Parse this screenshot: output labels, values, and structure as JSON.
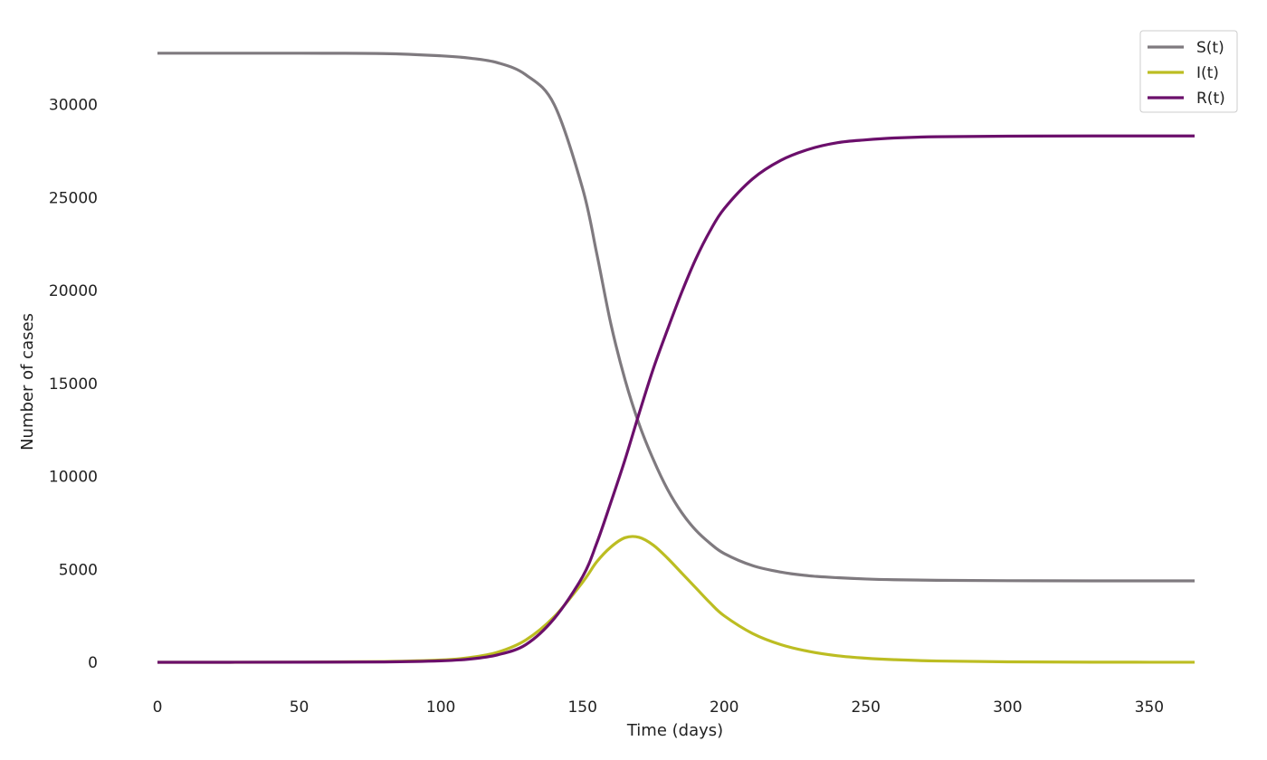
{
  "chart_data": {
    "type": "line",
    "title": "",
    "xlabel": "Time (days)",
    "ylabel": "Number of cases",
    "xlim": [
      0,
      366
    ],
    "ylim": [
      0,
      32800
    ],
    "xticks": [
      0,
      50,
      100,
      150,
      200,
      250,
      300,
      350
    ],
    "yticks": [
      0,
      5000,
      10000,
      15000,
      20000,
      25000,
      30000
    ],
    "grid": false,
    "legend_position": "top-right",
    "x": [
      0,
      50,
      80,
      100,
      110,
      120,
      130,
      140,
      150,
      155,
      160,
      165,
      170,
      175,
      180,
      185,
      190,
      195,
      200,
      210,
      220,
      230,
      240,
      250,
      260,
      275,
      300,
      330,
      366
    ],
    "series": [
      {
        "name": "S(t)",
        "color": "#7f7a7f",
        "values": [
          32760,
          32760,
          32740,
          32620,
          32500,
          32250,
          31600,
          30000,
          25500,
          22000,
          18200,
          15200,
          12800,
          10900,
          9300,
          8050,
          7100,
          6400,
          5850,
          5200,
          4850,
          4650,
          4550,
          4480,
          4440,
          4410,
          4390,
          4380,
          4380
        ]
      },
      {
        "name": "I(t)",
        "color": "#bcbd22",
        "values": [
          0,
          5,
          40,
          120,
          250,
          540,
          1200,
          2450,
          4300,
          5400,
          6200,
          6700,
          6720,
          6300,
          5600,
          4800,
          4000,
          3200,
          2500,
          1550,
          950,
          580,
          350,
          220,
          140,
          70,
          25,
          8,
          2
        ]
      },
      {
        "name": "R(t)",
        "color": "#6b0f6b",
        "values": [
          0,
          5,
          20,
          80,
          170,
          400,
          950,
          2350,
          4600,
          6400,
          8600,
          10900,
          13400,
          15800,
          17900,
          19900,
          21700,
          23200,
          24400,
          26000,
          27000,
          27600,
          27950,
          28100,
          28200,
          28270,
          28300,
          28310,
          28310
        ]
      }
    ]
  }
}
